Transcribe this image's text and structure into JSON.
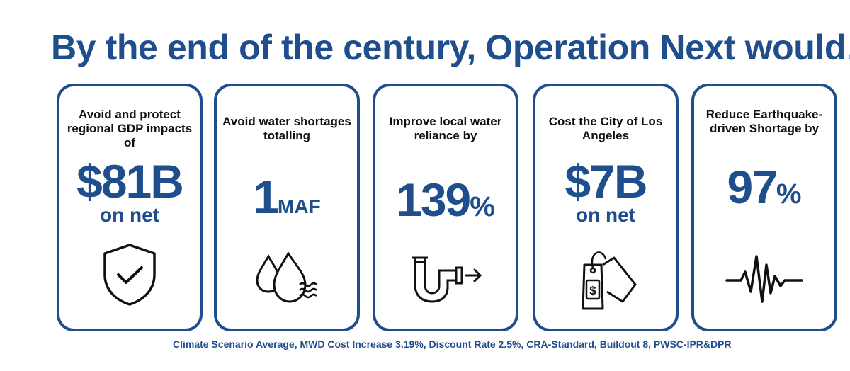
{
  "headline": "By the end of the century, Operation Next would…",
  "cards": [
    {
      "label": "Avoid and protect regional GDP impacts of",
      "value": "$81B",
      "sub": "on net",
      "icon": "shield-check-icon"
    },
    {
      "label": "Avoid water shortages totalling",
      "value": "1",
      "unit": "MAF",
      "icon": "water-drops-icon"
    },
    {
      "label": "Improve local water reliance by",
      "value": "139",
      "unit": "%",
      "icon": "pipe-icon"
    },
    {
      "label": "Cost the City of Los Angeles",
      "value": "$7B",
      "sub": "on net",
      "icon": "price-tag-icon"
    },
    {
      "label": "Reduce Earthquake-driven Shortage by",
      "value": "97",
      "unit": "%",
      "icon": "seismic-wave-icon"
    }
  ],
  "footnote": "Climate Scenario Average, MWD Cost Increase 3.19%, Discount Rate 2.5%, CRA-Standard, Buildout 8, PWSC-IPR&DPR",
  "colors": {
    "accent": "#1f4e8c",
    "text": "#111111"
  }
}
